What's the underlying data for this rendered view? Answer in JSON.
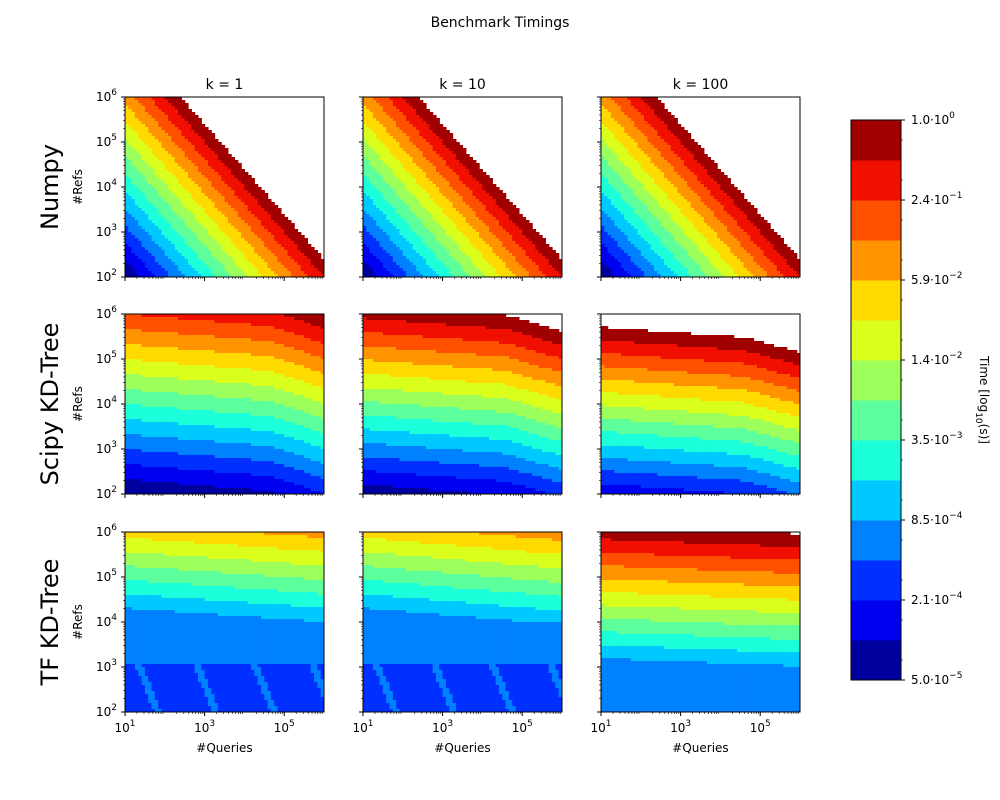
{
  "chart_data": {
    "type": "contour",
    "title": "Benchmark Timings",
    "columns": [
      "k = 1",
      "k = 10",
      "k = 100"
    ],
    "rows": [
      "Numpy",
      "Scipy KD-Tree",
      "TF KD-Tree"
    ],
    "xlabel": "#Queries",
    "ylabel": "#Refs",
    "x_scale": "log",
    "y_scale": "log",
    "xlim_log10": [
      1,
      6
    ],
    "ylim_log10": [
      2,
      6
    ],
    "x_ticks": [
      {
        "base": "10",
        "exp": "1",
        "log10": 1
      },
      {
        "base": "10",
        "exp": "3",
        "log10": 3
      },
      {
        "base": "10",
        "exp": "5",
        "log10": 5
      }
    ],
    "y_ticks": [
      {
        "base": "10",
        "exp": "2",
        "log10": 2
      },
      {
        "base": "10",
        "exp": "3",
        "log10": 3
      },
      {
        "base": "10",
        "exp": "4",
        "log10": 4
      },
      {
        "base": "10",
        "exp": "5",
        "log10": 5
      },
      {
        "base": "10",
        "exp": "6",
        "log10": 6
      }
    ],
    "level_colors": [
      "#00009f",
      "#0000f1",
      "#0030ff",
      "#0081ff",
      "#00c9ff",
      "#1cffdb",
      "#5cff9b",
      "#9cff5b",
      "#dbff1c",
      "#ffda00",
      "#ff9400",
      "#ff5000",
      "#f10f00",
      "#a00000"
    ],
    "colorbar": {
      "label_main": "Time [log",
      "label_sub": "10",
      "label_tail": "(s)]",
      "ticks": [
        {
          "mant": "1.0",
          "exp": "0",
          "frac": 1.0
        },
        {
          "mant": "2.4",
          "exp": "−1",
          "frac": 0.8571
        },
        {
          "mant": "5.9",
          "exp": "−2",
          "frac": 0.7143
        },
        {
          "mant": "1.4",
          "exp": "−2",
          "frac": 0.5714
        },
        {
          "mant": "3.5",
          "exp": "−3",
          "frac": 0.4286
        },
        {
          "mant": "8.5",
          "exp": "−4",
          "frac": 0.2857
        },
        {
          "mant": "2.1",
          "exp": "−4",
          "frac": 0.1429
        },
        {
          "mant": "5.0",
          "exp": "−5",
          "frac": 0.0
        }
      ]
    },
    "panels": [
      {
        "row": 0,
        "col": 0,
        "kind": "numpy",
        "base": 4.3,
        "sx": 1.0,
        "sy": 1.0,
        "curv": 0.0
      },
      {
        "row": 0,
        "col": 1,
        "kind": "numpy",
        "base": 4.3,
        "sx": 1.0,
        "sy": 1.0,
        "curv": 0.0
      },
      {
        "row": 0,
        "col": 2,
        "kind": "numpy",
        "base": 4.3,
        "sx": 1.0,
        "sy": 1.0,
        "curv": 0.0
      },
      {
        "row": 1,
        "col": 0,
        "kind": "tree",
        "base": 0.0,
        "sx": 0.22,
        "sy": 3.0,
        "curv": 0.0
      },
      {
        "row": 1,
        "col": 1,
        "kind": "tree",
        "base": 0.3,
        "sx": 0.22,
        "sy": 3.25,
        "curv": 0.0
      },
      {
        "row": 1,
        "col": 2,
        "kind": "tree",
        "base": 1.2,
        "sx": 0.22,
        "sy": 3.45,
        "curv": 0.0
      },
      {
        "row": 2,
        "col": 0,
        "kind": "tf",
        "base": 2.6,
        "sx": 0.2,
        "sy": 1.0,
        "curv": 0.0
      },
      {
        "row": 2,
        "col": 1,
        "kind": "tf",
        "base": 2.6,
        "sx": 0.24,
        "sy": 1.0,
        "curv": 0.0
      },
      {
        "row": 2,
        "col": 2,
        "kind": "tfk",
        "base": 3.2,
        "sx": 0.12,
        "sy": 2.1,
        "curv": 0.0
      }
    ]
  }
}
